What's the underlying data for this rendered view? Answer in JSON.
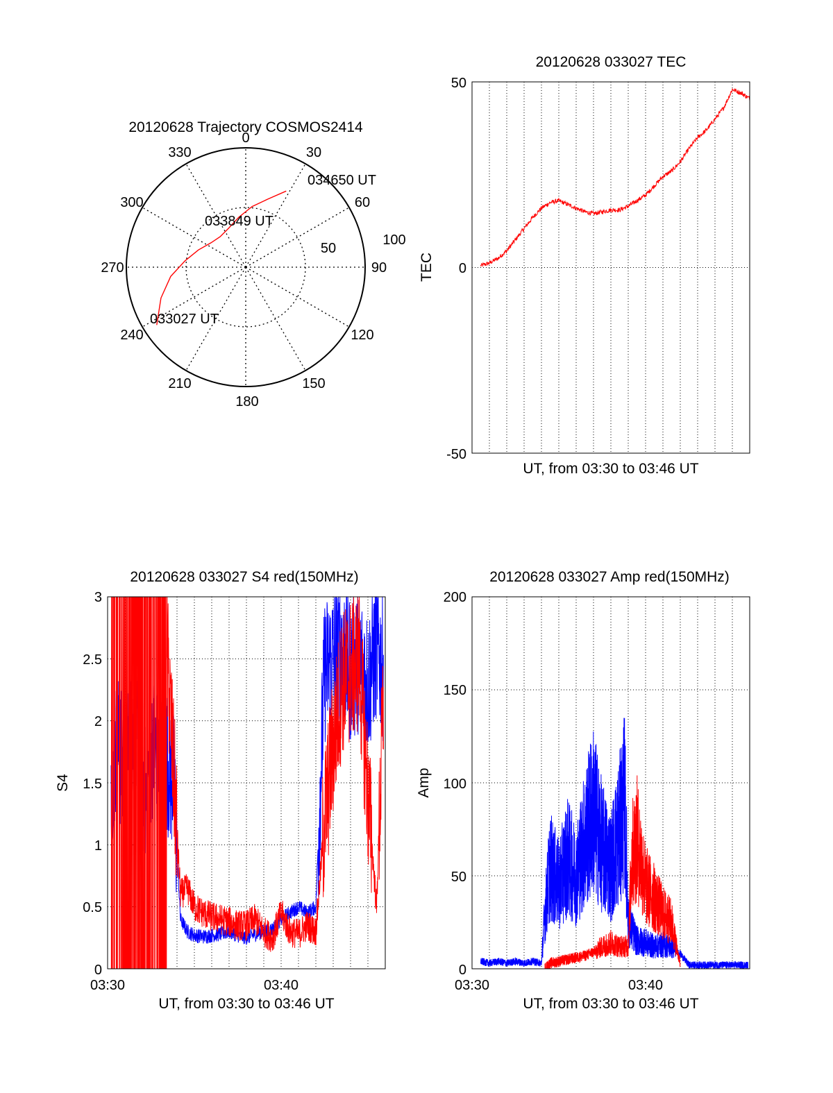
{
  "colors": {
    "red": "#ff0000",
    "blue": "#0000ff",
    "axis": "#000000"
  },
  "chart_data": [
    {
      "id": "trajectory",
      "type": "scatter",
      "title": "20120628 Trajectory COSMOS2414",
      "projection": "polar",
      "azimuth_labels": [
        "0",
        "30",
        "60",
        "90",
        "120",
        "150",
        "180",
        "210",
        "240",
        "270",
        "300",
        "330"
      ],
      "radial_labels": [
        "50",
        "100"
      ],
      "series": [
        {
          "color": "#ff0000",
          "azimuth_deg": [
            237,
            250,
            263,
            276,
            290,
            305,
            320,
            336,
            352,
            6,
            18,
            28
          ],
          "elevation_deg": [
            10,
            22,
            33,
            44,
            52,
            58,
            60,
            58,
            52,
            44,
            36,
            25
          ]
        }
      ],
      "annotations": [
        {
          "text": "034650 UT",
          "az": 28,
          "el": 25
        },
        {
          "text": "033849 UT",
          "az": 330,
          "el": 60
        },
        {
          "text": "033027 UT",
          "az": 237,
          "el": 10
        }
      ]
    },
    {
      "id": "tec",
      "type": "line",
      "title": "20120628 033027 TEC",
      "xlabel": "UT, from 03:30 to 03:46 UT",
      "ylabel": "TEC",
      "xlim": [
        0,
        16
      ],
      "ylim": [
        -50,
        50
      ],
      "yticks": [
        "-50",
        "0",
        "50"
      ],
      "grid": true,
      "series": [
        {
          "color": "#ff0000",
          "x": [
            0.5,
            1.0,
            1.5,
            2.0,
            2.5,
            3.0,
            3.5,
            4.0,
            4.5,
            5.0,
            5.5,
            6.0,
            6.5,
            7.0,
            7.5,
            8.0,
            8.5,
            9.0,
            9.5,
            10.0,
            10.5,
            11.0,
            11.5,
            12.0,
            12.5,
            13.0,
            13.5,
            14.0,
            14.5,
            15.0,
            15.5,
            16.0
          ],
          "y": [
            0.5,
            1.2,
            2.5,
            4.5,
            7.5,
            10.5,
            13.5,
            16.0,
            17.5,
            18.0,
            17.0,
            16.0,
            15.0,
            14.5,
            15.0,
            15.5,
            15.5,
            16.5,
            18.0,
            19.5,
            22.0,
            24.5,
            26.0,
            28.5,
            32.0,
            35.0,
            37.0,
            40.0,
            43.0,
            48.0,
            47.0,
            45.5
          ]
        }
      ]
    },
    {
      "id": "s4",
      "type": "line",
      "title": "20120628 033027 S4 red(150MHz)",
      "xlabel": "UT, from 03:30 to 03:46 UT",
      "ylabel": "S4",
      "xlim": [
        0,
        16
      ],
      "ylim": [
        0,
        3
      ],
      "xticks": [
        "03:30",
        "03:40"
      ],
      "yticks": [
        "0",
        "0.5",
        "1",
        "1.5",
        "2",
        "2.5",
        "3"
      ],
      "grid": true,
      "series": [
        {
          "color": "#ff0000",
          "x": [
            0.2,
            0.6,
            1.0,
            1.4,
            1.8,
            2.2,
            2.6,
            3.0,
            3.4,
            3.8,
            4.2,
            4.6,
            5.0,
            5.5,
            6.0,
            6.5,
            7.0,
            7.5,
            8.0,
            8.5,
            9.0,
            9.5,
            10.0,
            10.5,
            11.0,
            11.5,
            12.0,
            12.5,
            13.0,
            13.5,
            14.0,
            14.5,
            15.0,
            15.5,
            15.9
          ],
          "y": [
            3.0,
            1.0,
            3.0,
            0.5,
            3.0,
            1.5,
            3.0,
            0.8,
            2.6,
            1.6,
            0.6,
            0.65,
            0.5,
            0.45,
            0.42,
            0.4,
            0.38,
            0.35,
            0.35,
            0.4,
            0.3,
            0.25,
            0.45,
            0.3,
            0.28,
            0.35,
            0.3,
            1.2,
            1.8,
            2.3,
            2.4,
            2.5,
            1.4,
            0.5,
            2.2
          ]
        },
        {
          "color": "#0000ff",
          "x": [
            0.2,
            0.6,
            1.0,
            1.4,
            1.8,
            2.2,
            2.6,
            3.0,
            3.4,
            3.8,
            4.2,
            4.6,
            5.0,
            5.5,
            6.0,
            6.5,
            7.0,
            7.5,
            8.0,
            8.5,
            9.0,
            9.5,
            10.0,
            10.5,
            11.0,
            11.5,
            12.0,
            12.5,
            13.0,
            13.5,
            14.0,
            14.5,
            15.0,
            15.5,
            15.9
          ],
          "y": [
            1.6,
            1.8,
            1.5,
            1.9,
            1.7,
            1.4,
            1.8,
            1.6,
            1.7,
            1.5,
            0.4,
            0.3,
            0.27,
            0.26,
            0.27,
            0.28,
            0.3,
            0.27,
            0.25,
            0.28,
            0.3,
            0.32,
            0.4,
            0.45,
            0.5,
            0.45,
            0.5,
            2.4,
            2.5,
            2.6,
            2.4,
            2.5,
            2.3,
            2.6,
            2.4
          ]
        }
      ]
    },
    {
      "id": "amp",
      "type": "line",
      "title": "20120628 033027 Amp red(150MHz)",
      "xlabel": "UT, from 03:30 to 03:46 UT",
      "ylabel": "Amp",
      "xlim": [
        0,
        16
      ],
      "ylim": [
        0,
        200
      ],
      "xticks": [
        "03:30",
        "03:40"
      ],
      "yticks": [
        "0",
        "50",
        "100",
        "150",
        "200"
      ],
      "grid": true,
      "series": [
        {
          "color": "#0000ff",
          "x": [
            0.5,
            1.0,
            1.5,
            2.0,
            2.5,
            3.0,
            3.5,
            4.0,
            4.2,
            4.5,
            5.0,
            5.5,
            6.0,
            6.5,
            7.0,
            7.5,
            8.0,
            8.5,
            8.8,
            9.0,
            9.5,
            10.0,
            10.5,
            11.0,
            11.5,
            12.0,
            12.5,
            13.0,
            14.0,
            15.0,
            15.9
          ],
          "y": [
            4,
            3,
            4,
            3,
            4,
            3,
            4,
            3,
            30,
            55,
            45,
            60,
            50,
            70,
            85,
            65,
            55,
            75,
            90,
            25,
            15,
            14,
            12,
            13,
            12,
            8,
            2,
            2,
            2,
            2,
            2
          ]
        },
        {
          "color": "#ff0000",
          "x": [
            4.2,
            4.5,
            5.0,
            5.5,
            6.0,
            6.5,
            7.0,
            7.5,
            8.0,
            8.5,
            9.0,
            9.2,
            9.5,
            10.0,
            10.5,
            11.0,
            11.5,
            12.0
          ],
          "y": [
            0,
            3,
            4,
            5,
            6,
            7,
            9,
            12,
            14,
            12,
            12,
            60,
            70,
            45,
            38,
            30,
            25,
            2
          ]
        }
      ]
    }
  ]
}
